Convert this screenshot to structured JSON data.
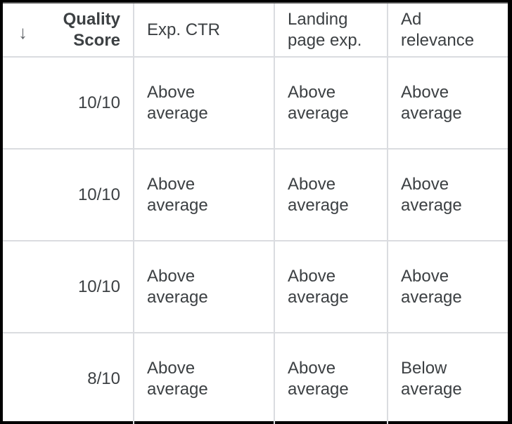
{
  "header": {
    "sort_icon": "arrow-down-icon",
    "columns": [
      "Quality\nScore",
      "Exp. CTR",
      "Landing\npage exp.",
      "Ad\nrelevance"
    ],
    "quality_line1": "Quality",
    "quality_line2": "Score",
    "ctr": "Exp. CTR",
    "landing_line1": "Landing",
    "landing_line2": "page exp.",
    "ad_line1": "Ad",
    "ad_line2": "relevance"
  },
  "rows": [
    {
      "score": "10/10",
      "ctr": [
        "Above",
        "average"
      ],
      "landing": [
        "Above",
        "average"
      ],
      "ad": [
        "Above",
        "average"
      ]
    },
    {
      "score": "10/10",
      "ctr": [
        "Above",
        "average"
      ],
      "landing": [
        "Above",
        "average"
      ],
      "ad": [
        "Above",
        "average"
      ]
    },
    {
      "score": "10/10",
      "ctr": [
        "Above",
        "average"
      ],
      "landing": [
        "Above",
        "average"
      ],
      "ad": [
        "Above",
        "average"
      ]
    },
    {
      "score": "8/10",
      "ctr": [
        "Above",
        "average"
      ],
      "landing": [
        "Above",
        "average"
      ],
      "ad": [
        "Below",
        "average"
      ]
    }
  ]
}
